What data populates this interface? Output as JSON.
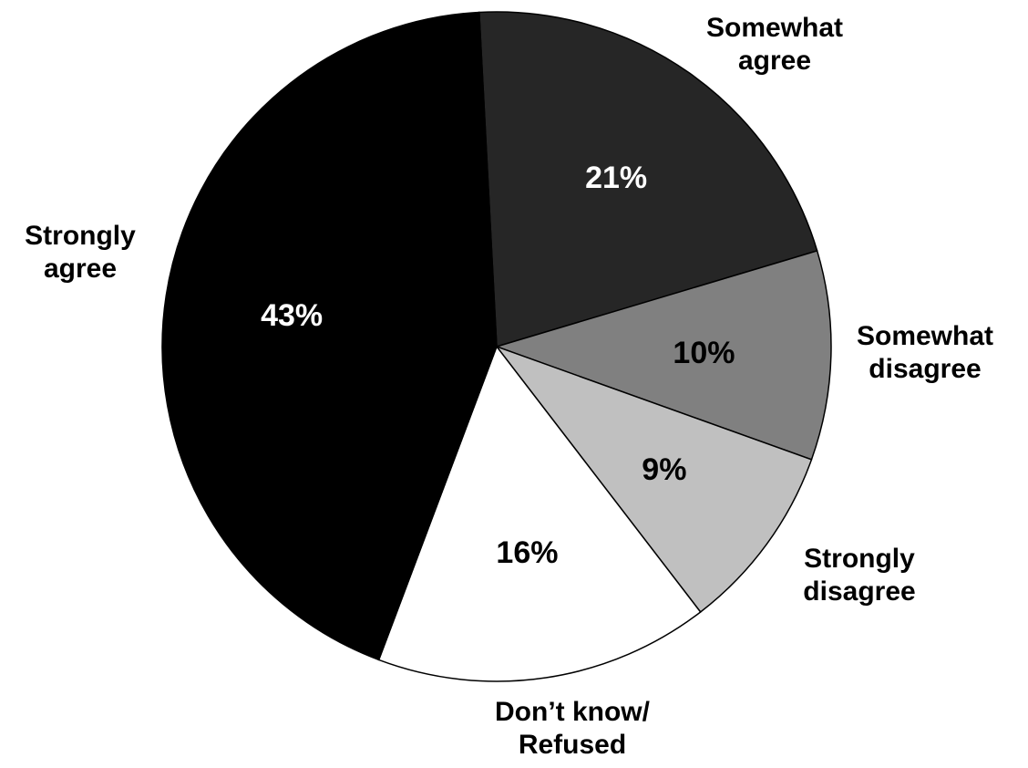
{
  "chart_data": {
    "type": "pie",
    "title": "",
    "start_angle_deg": -3,
    "direction": "clockwise",
    "slices": [
      {
        "label_lines": [
          "Somewhat",
          "agree"
        ],
        "value": 21,
        "value_label": "21%",
        "color": "#262626",
        "label_color": "#ffffff"
      },
      {
        "label_lines": [
          "Somewhat",
          "disagree"
        ],
        "value": 10,
        "value_label": "10%",
        "color": "#808080",
        "label_color": "#000000"
      },
      {
        "label_lines": [
          "Strongly",
          "disagree"
        ],
        "value": 9,
        "value_label": "9%",
        "color": "#c0c0c0",
        "label_color": "#000000"
      },
      {
        "label_lines": [
          "Don’t know/",
          "Refused"
        ],
        "value": 16,
        "value_label": "16%",
        "color": "#ffffff",
        "label_color": "#000000"
      },
      {
        "label_lines": [
          "Strongly",
          "agree"
        ],
        "value": 43,
        "value_label": "43%",
        "color": "#000000",
        "label_color": "#ffffff"
      }
    ]
  }
}
